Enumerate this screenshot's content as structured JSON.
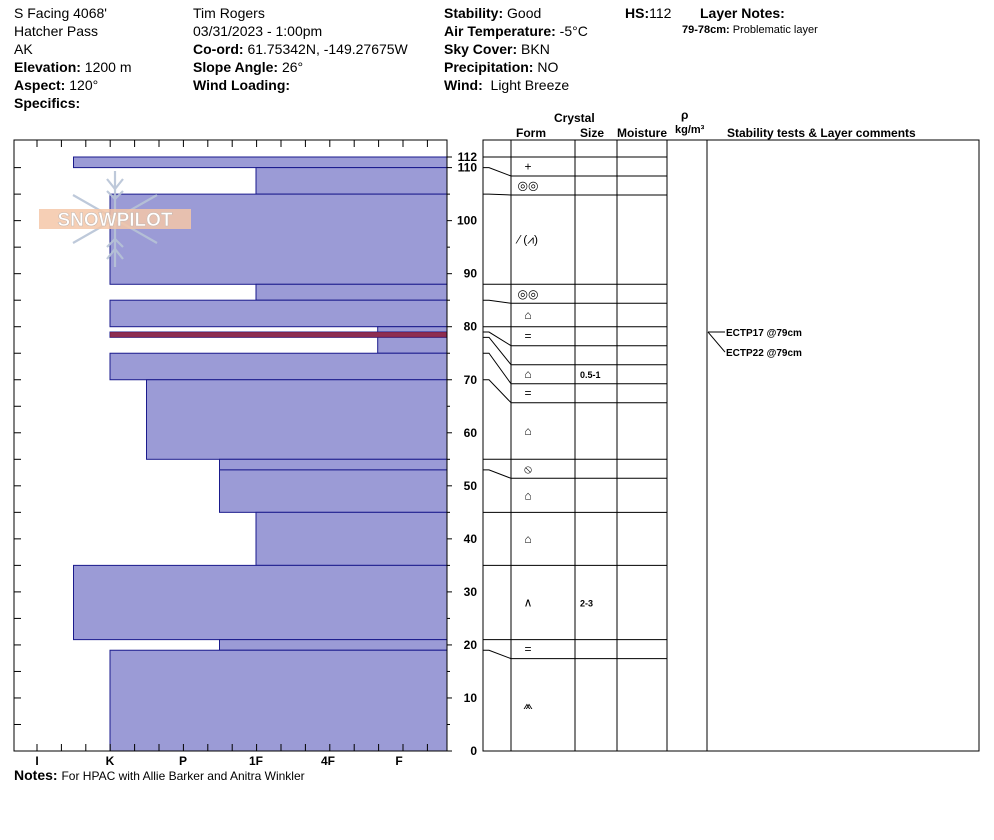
{
  "header": {
    "location": "S Facing 4068'",
    "range": "Hatcher Pass",
    "state": "AK",
    "elevation_label": "Elevation:",
    "elevation": "1200 m",
    "aspect_label": "Aspect:",
    "aspect": "120°",
    "specifics_label": "Specifics:",
    "observer": "Tim Rogers",
    "datetime": "03/31/2023 - 1:00pm",
    "coord_label": "Co-ord:",
    "coord": "61.75342N, -149.27675W",
    "slope_label": "Slope Angle:",
    "slope": "26°",
    "wind_loading_label": "Wind Loading:",
    "stability_label": "Stability:",
    "stability": "Good",
    "air_temp_label": "Air Temperature:",
    "air_temp": "-5°C",
    "sky_label": "Sky Cover:",
    "sky": "BKN",
    "precip_label": "Precipitation:",
    "precip": "NO",
    "wind_label": "Wind:",
    "wind": "Light Breeze",
    "hs_label": "HS:",
    "hs": "112",
    "layer_notes_label": "Layer Notes:",
    "layer_note_key": "79-78cm:",
    "layer_note_text": "Problematic layer"
  },
  "columns": {
    "crystal": "Crystal",
    "form": "Form",
    "size": "Size",
    "moisture": "Moisture",
    "rho": "ρ",
    "density_unit": "kg/m³",
    "stability": "Stability tests & Layer comments"
  },
  "logo_text": "SNOWPILOT",
  "notes_label": "Notes:",
  "notes": "For HPAC with Allie Barker and Anitra Winkler",
  "chart_data": {
    "type": "snow-profile",
    "hardness_scale": [
      "I",
      "K",
      "P",
      "1F",
      "4F",
      "F"
    ],
    "ylim": [
      0,
      112
    ],
    "y_ticks": [
      0,
      10,
      20,
      30,
      40,
      50,
      60,
      70,
      80,
      90,
      100,
      110,
      112
    ],
    "layers": [
      {
        "top": 112,
        "bottom": 110,
        "hardness": 0.5,
        "form": "+",
        "size": ""
      },
      {
        "top": 110,
        "bottom": 105,
        "hardness": 3.0,
        "form": "◎◎",
        "size": ""
      },
      {
        "top": 105,
        "bottom": 88,
        "hardness": 1.0,
        "form": "⁄ (⩘)",
        "size": ""
      },
      {
        "top": 88,
        "bottom": 85,
        "hardness": 3.0,
        "form": "◎◎",
        "size": ""
      },
      {
        "top": 85,
        "bottom": 80,
        "hardness": 1.0,
        "form": "⌂",
        "size": ""
      },
      {
        "top": 80,
        "bottom": 79,
        "hardness": 4.7,
        "form": "=",
        "size": ""
      },
      {
        "top": 79,
        "bottom": 78,
        "hardness": 1.0,
        "form": "",
        "size": ""
      },
      {
        "top": 78,
        "bottom": 75,
        "hardness": 4.7,
        "form": "⌂",
        "size": "0.5-1"
      },
      {
        "top": 75,
        "bottom": 70,
        "hardness": 1.0,
        "form": "=",
        "size": ""
      },
      {
        "top": 70,
        "bottom": 55,
        "hardness": 1.5,
        "form": "⌂",
        "size": ""
      },
      {
        "top": 55,
        "bottom": 53,
        "hardness": 2.5,
        "form": "⦸",
        "size": ""
      },
      {
        "top": 53,
        "bottom": 45,
        "hardness": 2.5,
        "form": "⌂",
        "size": ""
      },
      {
        "top": 45,
        "bottom": 35,
        "hardness": 3.0,
        "form": "⌂",
        "size": ""
      },
      {
        "top": 35,
        "bottom": 21,
        "hardness": 0.5,
        "form": "∧",
        "size": "2-3"
      },
      {
        "top": 21,
        "bottom": 19,
        "hardness": 2.5,
        "form": "=",
        "size": ""
      },
      {
        "top": 19,
        "bottom": 0,
        "hardness": 1.0,
        "form": "⩕",
        "size": ""
      }
    ],
    "stability_tests": [
      {
        "label": "ECTP17 @79cm",
        "depth": 79
      },
      {
        "label": "ECTP22 @79cm",
        "depth": 79
      }
    ],
    "problem_layer": {
      "top": 79,
      "bottom": 78,
      "color": "#8b1a3a"
    },
    "fill_color": "#9b9bd6",
    "edge_color": "#1a1a8c"
  }
}
